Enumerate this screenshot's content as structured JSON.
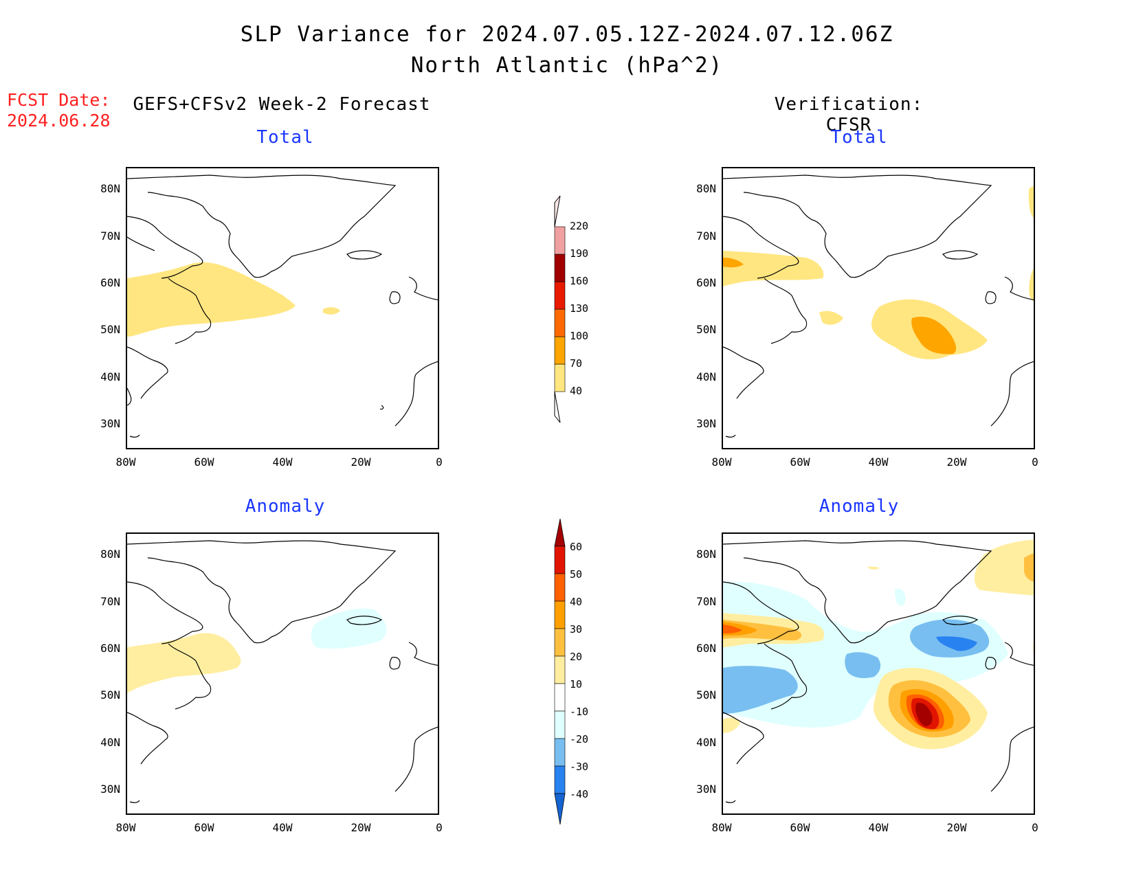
{
  "title": {
    "line1": "SLP Variance for 2024.07.05.12Z-2024.07.12.06Z",
    "line2": "North Atlantic (hPa^2)"
  },
  "forecast": {
    "label": "FCST Date:",
    "date": "2024.06.28",
    "color": "#ff2020"
  },
  "columns": {
    "left_heading": "GEFS+CFSv2 Week-2 Forecast",
    "right_heading": "Verification: CFSR"
  },
  "panels": {
    "forecast_total": "Total",
    "verification_total": "Total",
    "forecast_anomaly": "Anomaly",
    "verification_anomaly": "Anomaly"
  },
  "axes": {
    "lat_labels": [
      "80N",
      "70N",
      "60N",
      "50N",
      "40N",
      "30N"
    ],
    "lon_labels": [
      "80W",
      "60W",
      "40W",
      "20W",
      "0"
    ]
  },
  "total_colorbar": {
    "levels": [
      "40",
      "70",
      "100",
      "130",
      "160",
      "190",
      "220"
    ],
    "colors": [
      "#ffe680",
      "#ffa500",
      "#ff6a00",
      "#e81a00",
      "#a00000",
      "#f0a0a0",
      "#ffe8e8"
    ]
  },
  "anomaly_colorbar": {
    "levels": [
      "-40",
      "-30",
      "-20",
      "-10",
      "10",
      "20",
      "30",
      "40",
      "50",
      "60"
    ],
    "colors": [
      "#1464d2",
      "#2882f0",
      "#78bef0",
      "#e0ffff",
      "#ffffff",
      "#ffeea0",
      "#ffc040",
      "#ffa000",
      "#ff6000",
      "#e11400",
      "#a50000"
    ]
  },
  "colors": {
    "title_blue": "#1a35ff",
    "land_line": "#000000"
  }
}
